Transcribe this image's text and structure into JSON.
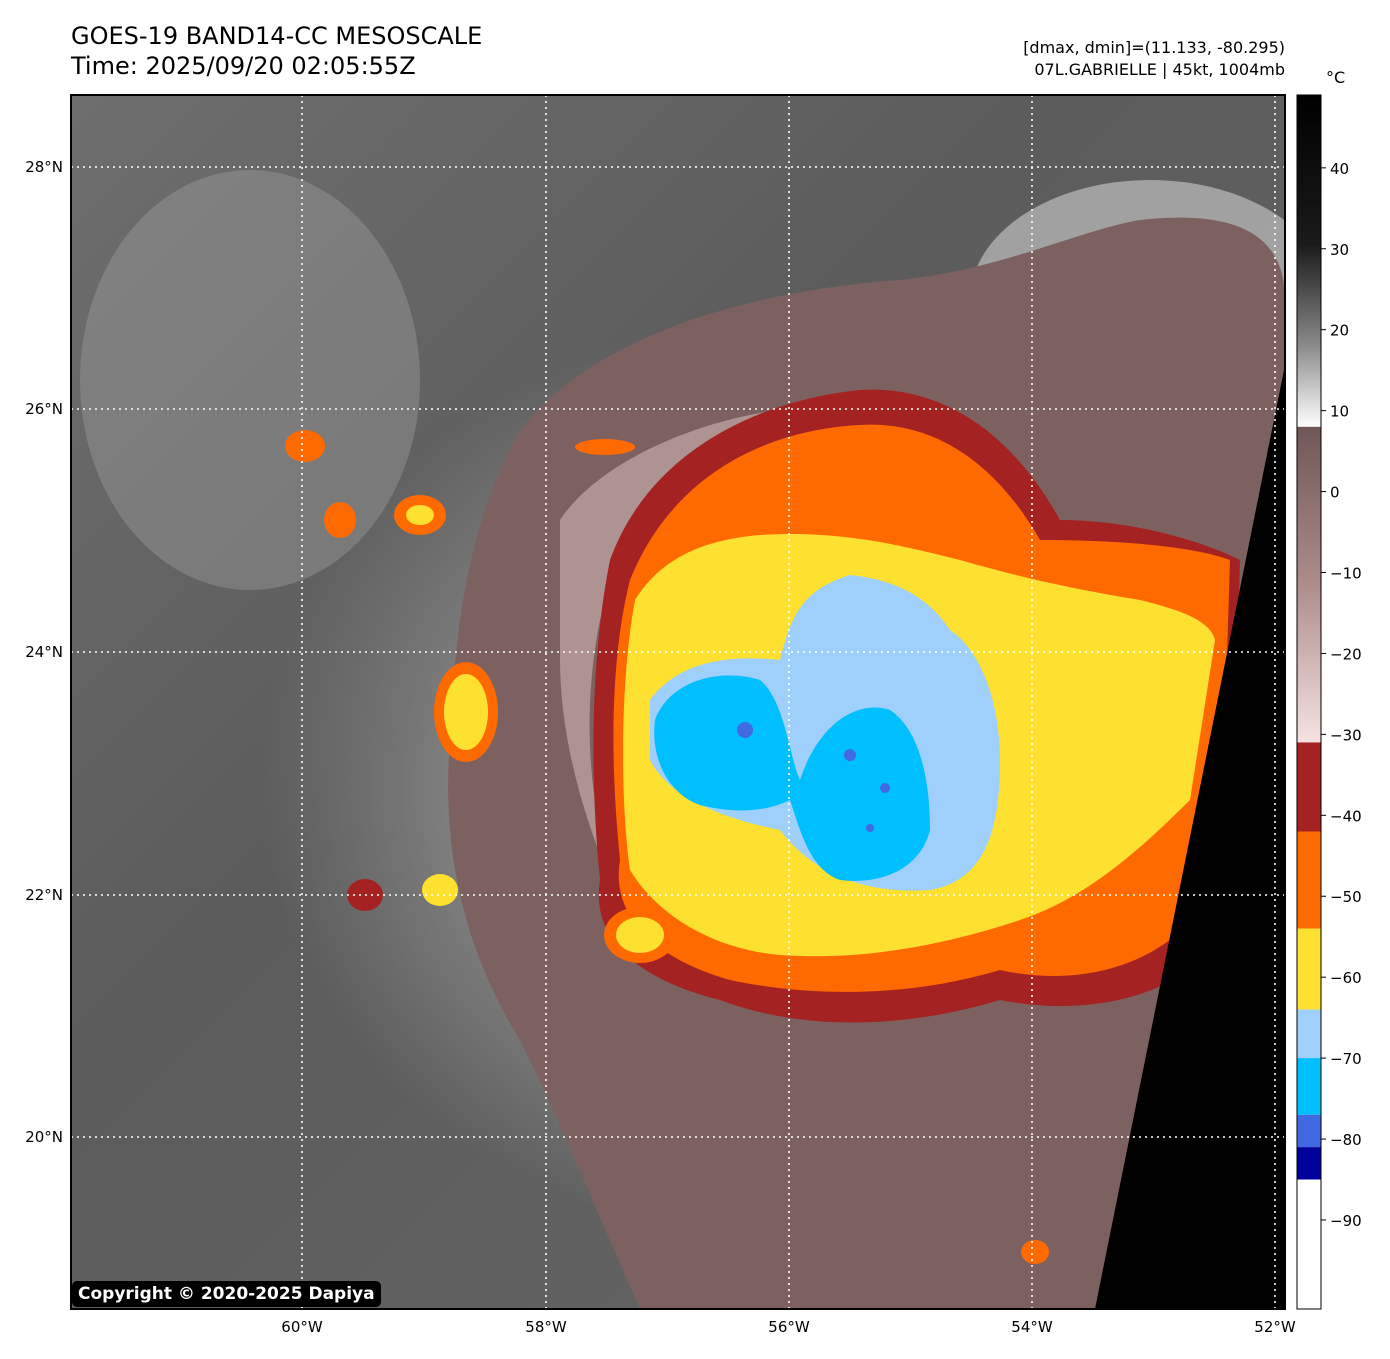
{
  "header": {
    "title": "GOES-19 BAND14-CC MESOSCALE",
    "time": "Time: 2025/09/20 02:05:55Z",
    "range": "[dmax, dmin]=(11.133, -80.295)",
    "storm": "07L.GABRIELLE | 45kt, 1004mb"
  },
  "colorbar": {
    "unit": "°C",
    "ticks": [
      {
        "label": "40",
        "value": 40
      },
      {
        "label": "30",
        "value": 30
      },
      {
        "label": "20",
        "value": 20
      },
      {
        "label": "10",
        "value": 10
      },
      {
        "label": "0",
        "value": 0
      },
      {
        "label": "−10",
        "value": -10
      },
      {
        "label": "−20",
        "value": -20
      },
      {
        "label": "−30",
        "value": -30
      },
      {
        "label": "−40",
        "value": -40
      },
      {
        "label": "−50",
        "value": -50
      },
      {
        "label": "−60",
        "value": -60
      },
      {
        "label": "−70",
        "value": -70
      },
      {
        "label": "−80",
        "value": -80
      },
      {
        "label": "−90",
        "value": -90
      }
    ],
    "bands": [
      {
        "from": 49,
        "to": 8,
        "color": "gradient-gray"
      },
      {
        "from": 8,
        "to": -31,
        "color": "gradient-brown"
      },
      {
        "from": -31,
        "to": -42,
        "color": "#a52222"
      },
      {
        "from": -42,
        "to": -54,
        "color": "#ff6a00"
      },
      {
        "from": -54,
        "to": -64,
        "color": "#fde030"
      },
      {
        "from": -64,
        "to": -70,
        "color": "#9fd0fb"
      },
      {
        "from": -70,
        "to": -77,
        "color": "#00bfff"
      },
      {
        "from": -77,
        "to": -81,
        "color": "#4169e1"
      },
      {
        "from": -81,
        "to": -85,
        "color": "#00009a"
      },
      {
        "from": -85,
        "to": -101,
        "color": "#ffffff"
      }
    ]
  },
  "map": {
    "lat_labels": [
      "28°N",
      "26°N",
      "24°N",
      "22°N",
      "20°N"
    ],
    "lon_labels": [
      "60°W",
      "58°W",
      "56°W",
      "54°W",
      "52°W"
    ]
  },
  "footer": {
    "copyright": "Copyright © 2020-2025 Dapiya"
  }
}
